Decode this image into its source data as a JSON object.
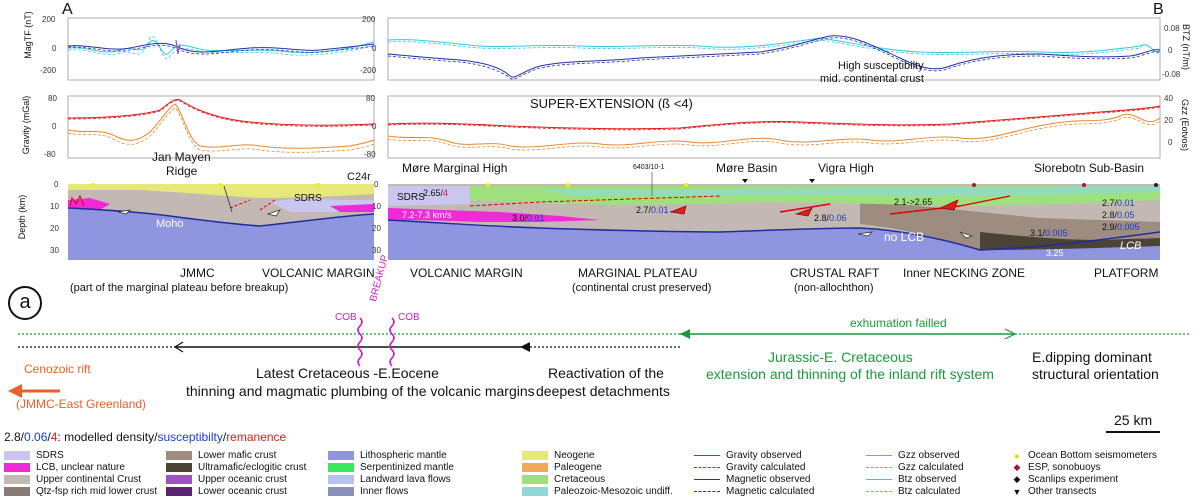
{
  "panel_labels": {
    "a_left": "A",
    "b_right": "B",
    "circle": "a"
  },
  "axes": {
    "magtf_label": "MagTF (nT)",
    "gravity_label": "Gravity (mGal)",
    "depth_label": "Depth (km)",
    "btz_label": "BTZ (nT/m)",
    "gzz_label": "Gzz (Eotvos)",
    "mag_ticks": [
      "200",
      "0",
      "-200"
    ],
    "grav_ticks": [
      "80",
      "0",
      "-80"
    ],
    "depth_ticks": [
      "0",
      "10",
      "20",
      "30"
    ],
    "btz_ticks": [
      "0.08",
      "0",
      "-0.08"
    ],
    "gzz_ticks": [
      "40",
      "20",
      "0"
    ]
  },
  "profile_labels": {
    "high_susceptibility_1": "High susceptibilty",
    "high_susceptibility_2": "mid. continental crust",
    "super_extension": "SUPER-EXTENSION (ß <4)",
    "jan_mayen_1": "Jan Mayen",
    "jan_mayen_2": "Ridge",
    "c24r": "C24r",
    "more_marginal_high": "Møre Marginal High",
    "well": "6403/10-1",
    "more_basin": "Møre Basin",
    "vigra_high": "Vigra High",
    "slorebotn": "Slorebotn Sub-Basin"
  },
  "section_labels": {
    "sdrs_left": "SDRS",
    "moho": "Moho",
    "sdrs_right": "SDRS",
    "vel": "7.2-7.3 km/s",
    "v265": "2.65/",
    "v4": "4",
    "v30a": "3.0/",
    "v30b": "0.01",
    "v27a": "2.7/",
    "v27b": "0.01",
    "v28a": "2.8/",
    "v28b": "0.06",
    "v21": "2.1->2.65",
    "r27a": "2.7/",
    "r27b": "0.01",
    "r28a": "2.8/",
    "r28b": "0.05",
    "r29a": "2.9/",
    "r29b": "0.005",
    "r31a": "3.1/",
    "r31b": "0.005",
    "no_lcb": "no LCB",
    "lcb": "LCB",
    "v325": "3.25"
  },
  "domains": {
    "jmmc": "JMMC",
    "volcanic_margin_left": "VOLCANIC MARGIN",
    "jmmc_note": "(part of the marginal plateau before breakup)",
    "volcanic_margin_right": "VOLCANIC MARGIN",
    "marginal_plateau": "MARGINAL PLATEAU",
    "marginal_plateau_note": "(continental  crust preserved)",
    "crustal_raft": "CRUSTAL RAFT",
    "crustal_raft_note": "(non-allochthon)",
    "inner_necking": "Inner NECKING ZONE",
    "platform": "PLATFORM"
  },
  "timeline": {
    "cob_left": "COB",
    "breakup": "BREAKUP",
    "cob_right": "COB",
    "exhumation": "exhumation failled",
    "cenozoic_rift": "Cenozoic rift",
    "cenozoic_rift_sub": "(JMMC-East Greenland)",
    "latest_cret_1": "Latest Cretaceous -E.Eocene",
    "latest_cret_2": "thinning and magmatic plumbing of the volcanic margins",
    "reactivation_1": "Reactivation of the",
    "reactivation_2": "deepest detachments",
    "jurassic_1": "Jurassic-E. Cretaceous",
    "jurassic_2": "extension and thinning of the inland rift system",
    "edipping_1": "E.dipping dominant",
    "edipping_2": "structural orientation",
    "scale": "25 km"
  },
  "caption": {
    "density": "2.8/",
    "susceptibility": "0.06",
    "remanence": "4",
    "text_1": ": modelled density/",
    "text_2": "susceptibilty",
    "text_3": "/",
    "text_4": "remanence"
  },
  "legend": {
    "col1": [
      {
        "label": "SDRS",
        "color": "#c9c7ef"
      },
      {
        "label": "LCB, unclear nature",
        "color": "#ef2bd9"
      },
      {
        "label": "Upper continental Crust",
        "color": "#c4b9b2"
      },
      {
        "label": "Qtz-fsp rich mid lower crust",
        "color": "#8a7c74"
      }
    ],
    "col2": [
      {
        "label": "Lower mafic crust",
        "color": "#9d8c7f"
      },
      {
        "label": "Ultramafic/eclogitic crust",
        "color": "#4a4336"
      },
      {
        "label": "Upper oceanic crust",
        "color": "#a14ec8"
      },
      {
        "label": "Lower oceanic crust",
        "color": "#5a2470"
      }
    ],
    "col3": [
      {
        "label": "Lithospheric mantle",
        "color": "#8f95df"
      },
      {
        "label": "Serpentinized mantle",
        "color": "#38e85f"
      },
      {
        "label": "Landward lava flows",
        "color": "#b6c3ef"
      },
      {
        "label": "Inner flows",
        "color": "#8a8fb9"
      }
    ],
    "col4": [
      {
        "label": "Neogene",
        "color": "#e6e87a"
      },
      {
        "label": "Paleogene",
        "color": "#f0a857"
      },
      {
        "label": "Cretaceous",
        "color": "#9fe07e"
      },
      {
        "label": "Paleozoic-Mesozoic undiff.",
        "color": "#8fd8d8"
      }
    ],
    "col5": [
      {
        "label": "Gravity observed",
        "color": "#e31b1b",
        "style": "solid"
      },
      {
        "label": "Gravity calculated",
        "color": "#e31b1b",
        "style": "dashed"
      },
      {
        "label": "Magnetic observed",
        "color": "#2430a8",
        "style": "solid"
      },
      {
        "label": "Magnetic calculated",
        "color": "#2430a8",
        "style": "dashed"
      }
    ],
    "col6": [
      {
        "label": "Gzz observed",
        "color": "#e8882a",
        "style": "solid"
      },
      {
        "label": "Gzz calculated",
        "color": "#e8882a",
        "style": "dashed"
      },
      {
        "label": "Btz observed",
        "color": "#33c8e0",
        "style": "solid"
      },
      {
        "label": "Btz calculated",
        "color": "#33c8e0",
        "style": "dashed"
      }
    ],
    "col7": [
      {
        "label": "Ocean Bottom seismometers",
        "symbol": "circle-yellow"
      },
      {
        "label": "ESP, sonobuoys",
        "symbol": "diamond-red"
      },
      {
        "label": "Scanlips experiment",
        "symbol": "diamond-black"
      },
      {
        "label": "Other transects",
        "symbol": "triangle-black"
      }
    ]
  }
}
